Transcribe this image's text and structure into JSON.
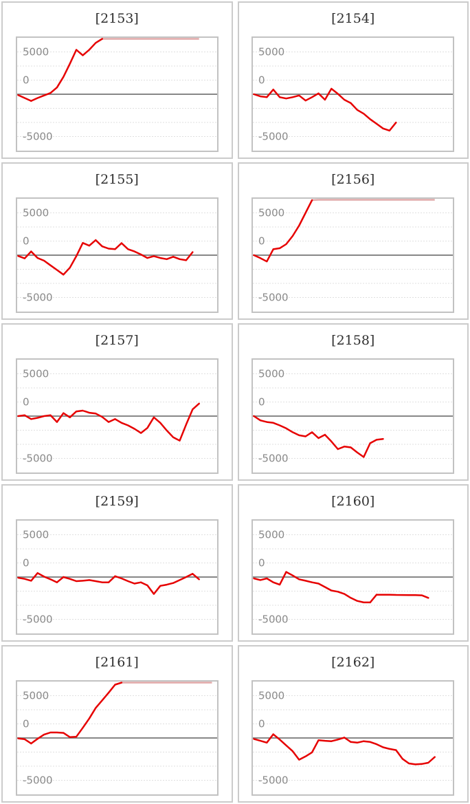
{
  "page": {
    "background": "#ffffff",
    "layout": "2x5 grid of slump-graph panels"
  },
  "axis": {
    "tick_labels": [
      "5000",
      "0",
      "-5000"
    ],
    "ylim": [
      -6667,
      6667
    ],
    "zero_line": true,
    "grid": "dashed horizontal lines every 1667 units",
    "clip_value": 6700,
    "clip_threshold": 6500
  },
  "colors": {
    "line": "#e60000",
    "line_clipped": "#e0a8a8",
    "grid_line": "#dfdfdf",
    "zero_line": "#878787",
    "plot_border": "#c2c2c2",
    "panel_border": "#cbcbcb",
    "tick_label": "#8a8a8a",
    "title": "#2f2f2f"
  },
  "chart_data": [
    {
      "type": "line",
      "title": "[2153]",
      "values": [
        -100,
        -450,
        -800,
        -450,
        -150,
        150,
        800,
        2050,
        3600,
        5250,
        4600,
        5250,
        6070,
        6700,
        6700,
        6700,
        6700,
        6700,
        6700,
        6700,
        6700,
        6700,
        6700,
        6700,
        6700,
        6700,
        6700,
        6700,
        6700
      ]
    },
    {
      "type": "line",
      "title": "[2154]",
      "values": [
        0,
        -250,
        -350,
        550,
        -350,
        -500,
        -350,
        -150,
        -750,
        -350,
        100,
        -650,
        650,
        50,
        -650,
        -1050,
        -1850,
        -2300,
        -2950,
        -3500,
        -4050,
        -4300,
        -3350
      ]
    },
    {
      "type": "line",
      "title": "[2155]",
      "values": [
        -100,
        -380,
        440,
        -330,
        -650,
        -1200,
        -1750,
        -2300,
        -1480,
        -110,
        1450,
        1120,
        1780,
        1040,
        770,
        710,
        1420,
        710,
        440,
        80,
        -330,
        -110,
        -330,
        -470,
        -190,
        -470,
        -600,
        360
      ]
    },
    {
      "type": "line",
      "title": "[2156]",
      "values": [
        0,
        -350,
        -750,
        700,
        820,
        1300,
        2270,
        3500,
        5000,
        6500,
        6700,
        6700,
        6700,
        6700,
        6700,
        6700,
        6700,
        6700,
        6700,
        6700,
        6700,
        6700,
        6700,
        6700,
        6700,
        6700,
        6700,
        6700,
        6700
      ]
    },
    {
      "type": "line",
      "title": "[2157]",
      "values": [
        0,
        100,
        -350,
        -200,
        0,
        100,
        -700,
        350,
        -150,
        550,
        650,
        400,
        300,
        -100,
        -700,
        -350,
        -800,
        -1100,
        -1500,
        -2000,
        -1400,
        -150,
        -800,
        -1700,
        -2500,
        -2900,
        -1000,
        800,
        1480
      ]
    },
    {
      "type": "line",
      "title": "[2158]",
      "values": [
        0,
        -500,
        -700,
        -800,
        -1100,
        -1450,
        -1900,
        -2270,
        -2400,
        -1900,
        -2600,
        -2200,
        -3000,
        -3900,
        -3600,
        -3700,
        -4300,
        -4840,
        -3200,
        -2800,
        -2700
      ]
    },
    {
      "type": "line",
      "title": "[2159]",
      "values": [
        -80,
        -220,
        -440,
        470,
        50,
        -270,
        -630,
        0,
        -220,
        -490,
        -440,
        -360,
        -490,
        -630,
        -630,
        100,
        -160,
        -490,
        -770,
        -630,
        -980,
        -2000,
        -1040,
        -900,
        -710,
        -360,
        0,
        380,
        -270
      ]
    },
    {
      "type": "line",
      "title": "[2160]",
      "values": [
        -160,
        -360,
        -160,
        -630,
        -900,
        600,
        190,
        -270,
        -440,
        -630,
        -770,
        -1180,
        -1590,
        -1730,
        -2000,
        -2460,
        -2820,
        -3000,
        -3000,
        -2080,
        -2090,
        -2100,
        -2110,
        -2120,
        -2130,
        -2140,
        -2160,
        -2460
      ]
    },
    {
      "type": "line",
      "title": "[2161]",
      "values": [
        -50,
        -150,
        -650,
        -100,
        400,
        650,
        650,
        600,
        100,
        150,
        1200,
        2300,
        3550,
        4450,
        5350,
        6300,
        6700,
        6700,
        6700,
        6700,
        6700,
        6700,
        6700,
        6700,
        6700,
        6700,
        6700,
        6700,
        6700,
        6700,
        6700
      ]
    },
    {
      "type": "line",
      "title": "[2162]",
      "values": [
        -110,
        -330,
        -550,
        440,
        -190,
        -880,
        -1560,
        -2570,
        -2180,
        -1700,
        -270,
        -330,
        -380,
        -190,
        50,
        -470,
        -550,
        -380,
        -470,
        -740,
        -1100,
        -1290,
        -1430,
        -2460,
        -3010,
        -3120,
        -3070,
        -2930,
        -2250
      ]
    }
  ]
}
